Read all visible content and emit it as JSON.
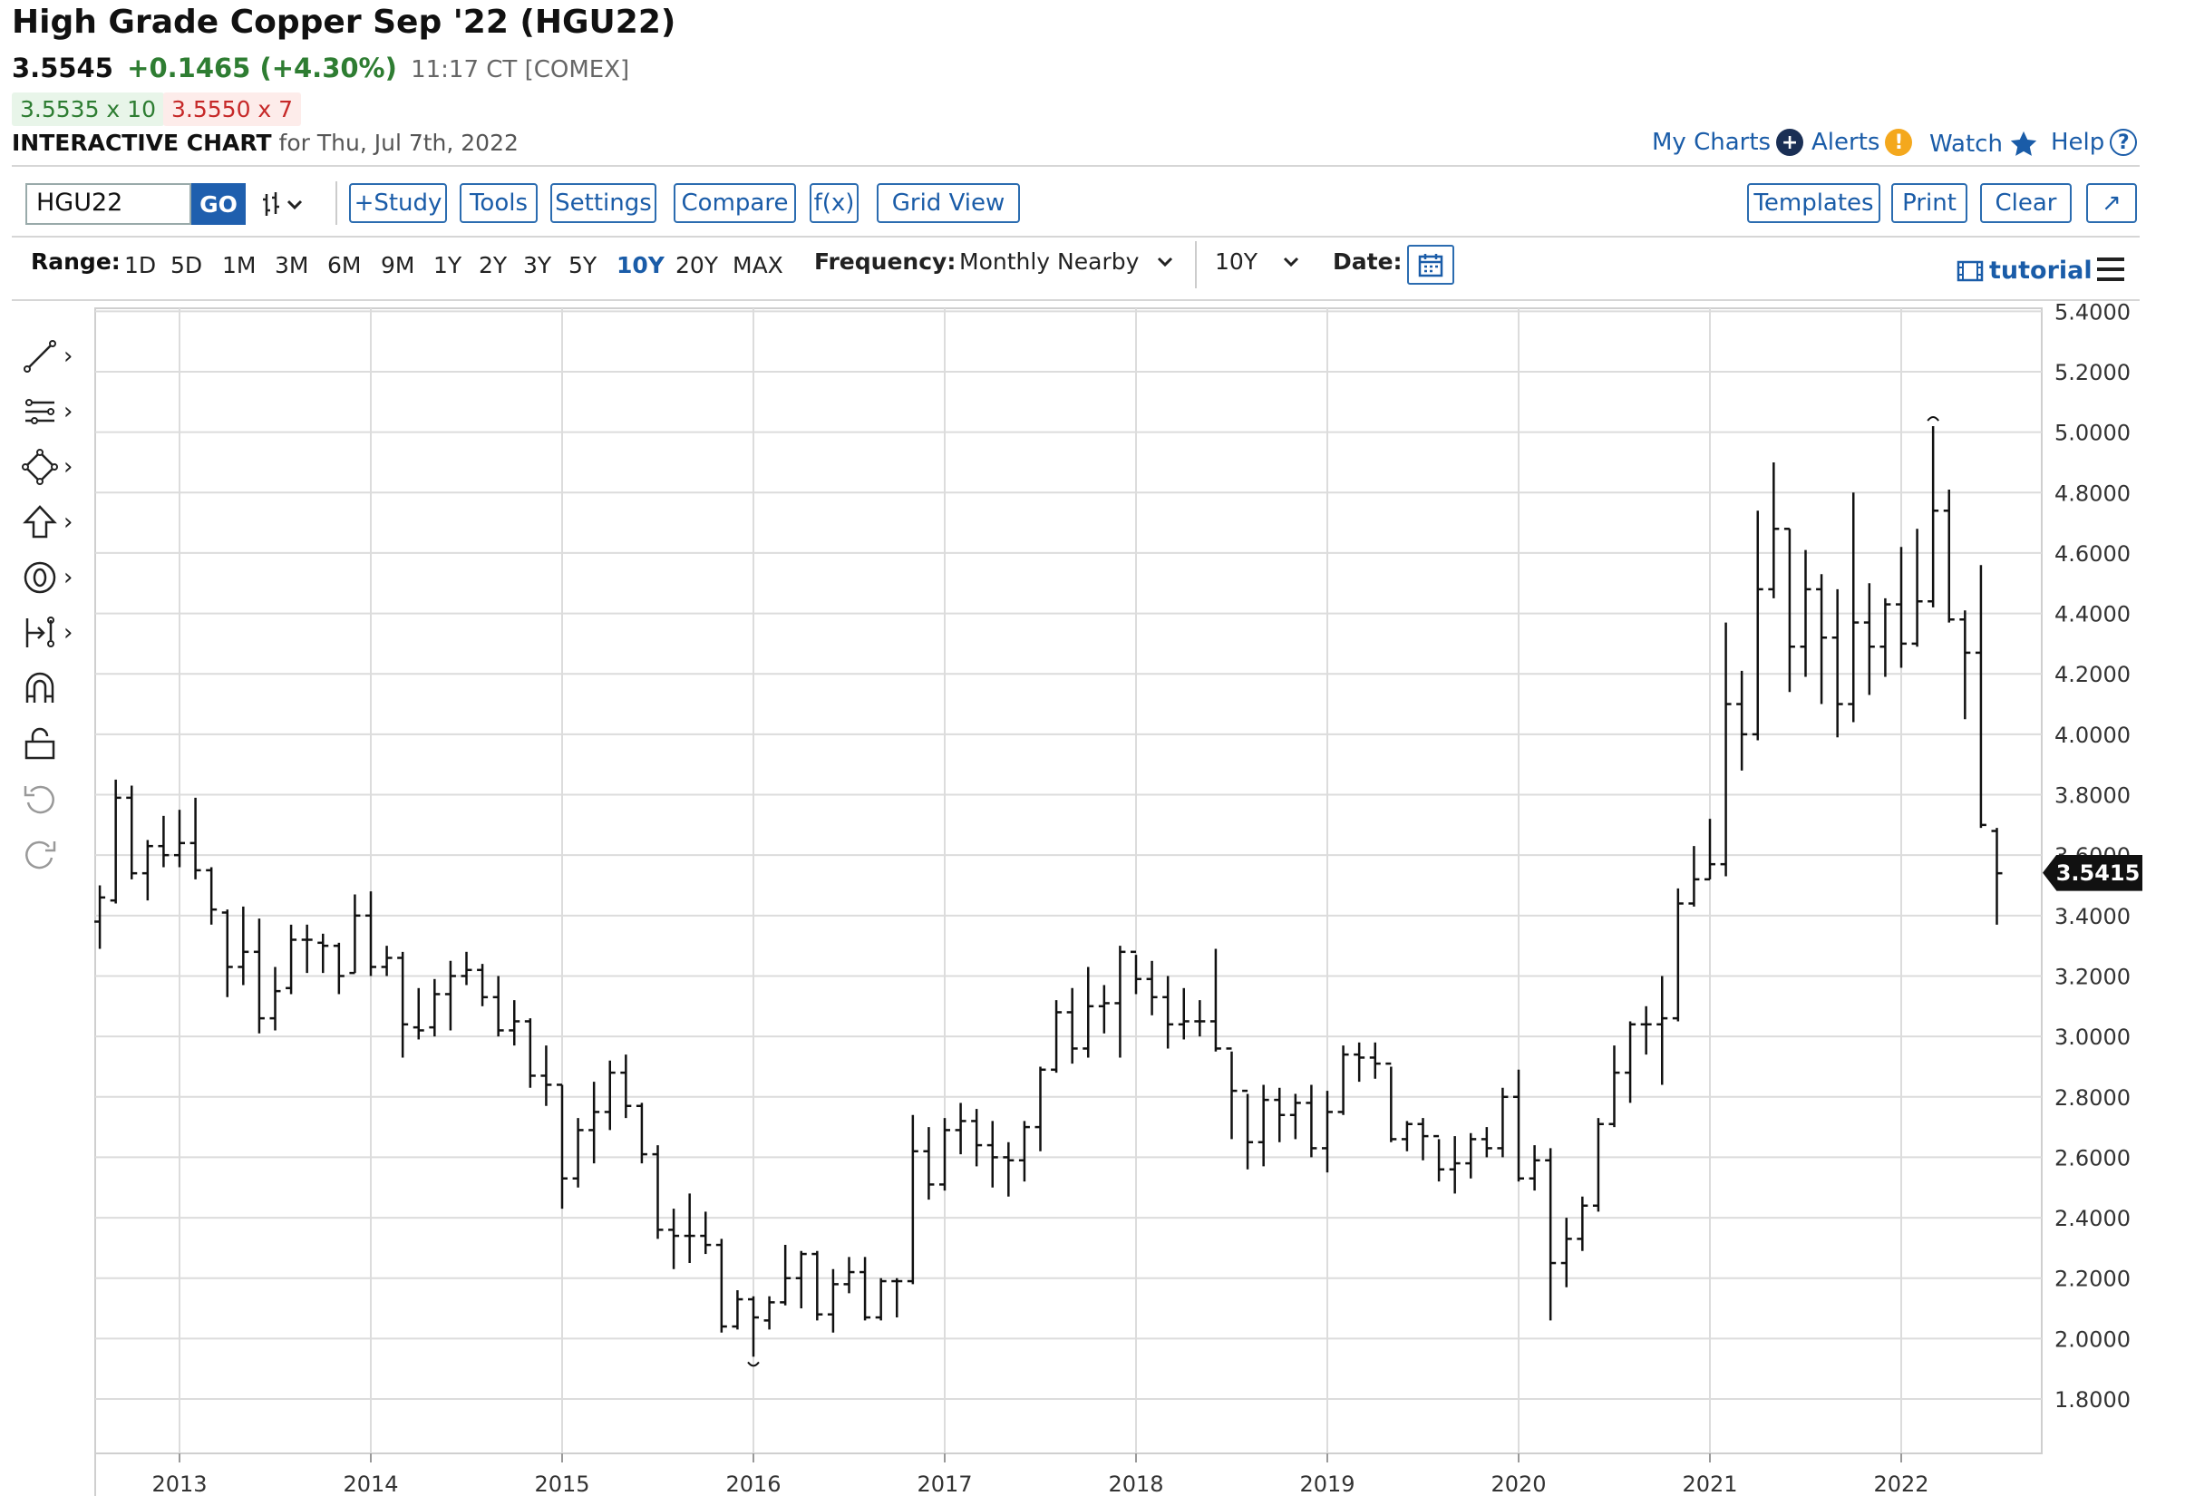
{
  "header": {
    "title": "High Grade Copper Sep '22 (HGU22)",
    "last": "3.5545",
    "change": "+0.1465 (+4.30%)",
    "time_exchange": "11:17 CT [COMEX]",
    "bid": "3.5535 x 10",
    "ask": "3.5550 x 7",
    "chart_label": "INTERACTIVE CHART",
    "chart_date": "for Thu, Jul 7th, 2022"
  },
  "top_links": {
    "my_charts": "My Charts",
    "alerts": "Alerts",
    "watch": "Watch",
    "help": "Help",
    "help_glyph": "?",
    "plus_glyph": "+",
    "alert_glyph": "!"
  },
  "toolbar": {
    "symbol": "HGU22",
    "go": "GO",
    "study": "+Study",
    "tools": "Tools",
    "settings": "Settings",
    "compare": "Compare",
    "fx": "f(x)",
    "grid_view": "Grid View",
    "templates": "Templates",
    "print": "Print",
    "clear": "Clear",
    "expand_glyph": "↗"
  },
  "range_bar": {
    "range_label": "Range:",
    "ranges": [
      "1D",
      "5D",
      "1M",
      "3M",
      "6M",
      "9M",
      "1Y",
      "2Y",
      "3Y",
      "5Y",
      "10Y",
      "20Y",
      "MAX"
    ],
    "selected": "10Y",
    "frequency_label": "Frequency:",
    "frequency_value": "Monthly Nearby",
    "period_value": "10Y",
    "date_label": "Date:",
    "tutorial": "tutorial",
    "chevron": "⌄"
  },
  "sidebar_icons": [
    "line-tool-icon",
    "fib-tool-icon",
    "shape-tool-icon",
    "arrow-up-icon",
    "circle-zero-icon",
    "measure-icon",
    "magnet-icon",
    "lock-icon",
    "undo-icon",
    "redo-icon"
  ],
  "colors": {
    "accent": "#1a5ca8",
    "up": "#2e7d32",
    "down": "#c62828",
    "bars": "#111111"
  },
  "chart_data": {
    "type": "ohlc",
    "frequency": "monthly",
    "x_tick_labels": [
      "2013",
      "2014",
      "2015",
      "2016",
      "2017",
      "2018",
      "2019",
      "2020",
      "2021",
      "2022"
    ],
    "y_tick_labels": [
      "1.8000",
      "2.0000",
      "2.2000",
      "2.4000",
      "2.6000",
      "2.8000",
      "3.0000",
      "3.2000",
      "3.4000",
      "3.6000",
      "3.8000",
      "4.0000",
      "4.2000",
      "4.4000",
      "4.6000",
      "4.8000",
      "5.0000",
      "5.2000",
      "5.4000"
    ],
    "ylim": [
      1.62,
      5.41
    ],
    "grid": true,
    "last_price_label": "3.5415",
    "last_price": 3.5415,
    "high_marker": 5.02,
    "low_marker": 1.94,
    "bars": [
      {
        "d": "2012-08",
        "o": 3.38,
        "h": 3.5,
        "l": 3.29,
        "c": 3.46
      },
      {
        "d": "2012-09",
        "o": 3.45,
        "h": 3.85,
        "l": 3.44,
        "c": 3.79
      },
      {
        "d": "2012-10",
        "o": 3.79,
        "h": 3.83,
        "l": 3.52,
        "c": 3.54
      },
      {
        "d": "2012-11",
        "o": 3.54,
        "h": 3.65,
        "l": 3.45,
        "c": 3.63
      },
      {
        "d": "2012-12",
        "o": 3.63,
        "h": 3.73,
        "l": 3.56,
        "c": 3.6
      },
      {
        "d": "2013-01",
        "o": 3.6,
        "h": 3.75,
        "l": 3.56,
        "c": 3.64
      },
      {
        "d": "2013-02",
        "o": 3.64,
        "h": 3.79,
        "l": 3.52,
        "c": 3.55
      },
      {
        "d": "2013-03",
        "o": 3.55,
        "h": 3.56,
        "l": 3.37,
        "c": 3.42
      },
      {
        "d": "2013-04",
        "o": 3.41,
        "h": 3.42,
        "l": 3.13,
        "c": 3.23
      },
      {
        "d": "2013-05",
        "o": 3.23,
        "h": 3.43,
        "l": 3.17,
        "c": 3.28
      },
      {
        "d": "2013-06",
        "o": 3.28,
        "h": 3.39,
        "l": 3.01,
        "c": 3.06
      },
      {
        "d": "2013-07",
        "o": 3.06,
        "h": 3.23,
        "l": 3.02,
        "c": 3.15
      },
      {
        "d": "2013-08",
        "o": 3.16,
        "h": 3.37,
        "l": 3.14,
        "c": 3.32
      },
      {
        "d": "2013-09",
        "o": 3.32,
        "h": 3.37,
        "l": 3.21,
        "c": 3.32
      },
      {
        "d": "2013-10",
        "o": 3.31,
        "h": 3.34,
        "l": 3.21,
        "c": 3.3
      },
      {
        "d": "2013-11",
        "o": 3.3,
        "h": 3.31,
        "l": 3.14,
        "c": 3.2
      },
      {
        "d": "2013-12",
        "o": 3.21,
        "h": 3.47,
        "l": 3.21,
        "c": 3.4
      },
      {
        "d": "2014-01",
        "o": 3.4,
        "h": 3.48,
        "l": 3.2,
        "c": 3.23
      },
      {
        "d": "2014-02",
        "o": 3.23,
        "h": 3.3,
        "l": 3.2,
        "c": 3.26
      },
      {
        "d": "2014-03",
        "o": 3.26,
        "h": 3.28,
        "l": 2.93,
        "c": 3.04
      },
      {
        "d": "2014-04",
        "o": 3.03,
        "h": 3.16,
        "l": 2.99,
        "c": 3.02
      },
      {
        "d": "2014-05",
        "o": 3.03,
        "h": 3.19,
        "l": 3.0,
        "c": 3.14
      },
      {
        "d": "2014-06",
        "o": 3.14,
        "h": 3.25,
        "l": 3.02,
        "c": 3.2
      },
      {
        "d": "2014-07",
        "o": 3.2,
        "h": 3.28,
        "l": 3.17,
        "c": 3.22
      },
      {
        "d": "2014-08",
        "o": 3.22,
        "h": 3.24,
        "l": 3.1,
        "c": 3.13
      },
      {
        "d": "2014-09",
        "o": 3.13,
        "h": 3.2,
        "l": 3.0,
        "c": 3.02
      },
      {
        "d": "2014-10",
        "o": 3.02,
        "h": 3.12,
        "l": 2.97,
        "c": 3.05
      },
      {
        "d": "2014-11",
        "o": 3.05,
        "h": 3.06,
        "l": 2.83,
        "c": 2.87
      },
      {
        "d": "2014-12",
        "o": 2.87,
        "h": 2.97,
        "l": 2.77,
        "c": 2.84
      },
      {
        "d": "2015-01",
        "o": 2.84,
        "h": 2.84,
        "l": 2.43,
        "c": 2.53
      },
      {
        "d": "2015-02",
        "o": 2.53,
        "h": 2.73,
        "l": 2.5,
        "c": 2.69
      },
      {
        "d": "2015-03",
        "o": 2.69,
        "h": 2.85,
        "l": 2.58,
        "c": 2.75
      },
      {
        "d": "2015-04",
        "o": 2.75,
        "h": 2.92,
        "l": 2.69,
        "c": 2.88
      },
      {
        "d": "2015-05",
        "o": 2.88,
        "h": 2.94,
        "l": 2.73,
        "c": 2.77
      },
      {
        "d": "2015-06",
        "o": 2.77,
        "h": 2.78,
        "l": 2.58,
        "c": 2.61
      },
      {
        "d": "2015-07",
        "o": 2.61,
        "h": 2.64,
        "l": 2.33,
        "c": 2.36
      },
      {
        "d": "2015-08",
        "o": 2.36,
        "h": 2.43,
        "l": 2.23,
        "c": 2.34
      },
      {
        "d": "2015-09",
        "o": 2.34,
        "h": 2.48,
        "l": 2.25,
        "c": 2.34
      },
      {
        "d": "2015-10",
        "o": 2.34,
        "h": 2.42,
        "l": 2.28,
        "c": 2.31
      },
      {
        "d": "2015-11",
        "o": 2.31,
        "h": 2.33,
        "l": 2.02,
        "c": 2.04
      },
      {
        "d": "2015-12",
        "o": 2.04,
        "h": 2.16,
        "l": 2.03,
        "c": 2.13
      },
      {
        "d": "2016-01",
        "o": 2.13,
        "h": 2.14,
        "l": 1.94,
        "c": 2.07
      },
      {
        "d": "2016-02",
        "o": 2.06,
        "h": 2.14,
        "l": 2.03,
        "c": 2.12
      },
      {
        "d": "2016-03",
        "o": 2.12,
        "h": 2.31,
        "l": 2.11,
        "c": 2.2
      },
      {
        "d": "2016-04",
        "o": 2.2,
        "h": 2.29,
        "l": 2.1,
        "c": 2.28
      },
      {
        "d": "2016-05",
        "o": 2.28,
        "h": 2.29,
        "l": 2.06,
        "c": 2.08
      },
      {
        "d": "2016-06",
        "o": 2.08,
        "h": 2.23,
        "l": 2.02,
        "c": 2.18
      },
      {
        "d": "2016-07",
        "o": 2.18,
        "h": 2.27,
        "l": 2.15,
        "c": 2.22
      },
      {
        "d": "2016-08",
        "o": 2.22,
        "h": 2.27,
        "l": 2.06,
        "c": 2.07
      },
      {
        "d": "2016-09",
        "o": 2.07,
        "h": 2.2,
        "l": 2.06,
        "c": 2.19
      },
      {
        "d": "2016-10",
        "o": 2.19,
        "h": 2.2,
        "l": 2.07,
        "c": 2.19
      },
      {
        "d": "2016-11",
        "o": 2.19,
        "h": 2.74,
        "l": 2.18,
        "c": 2.62
      },
      {
        "d": "2016-12",
        "o": 2.62,
        "h": 2.7,
        "l": 2.46,
        "c": 2.51
      },
      {
        "d": "2017-01",
        "o": 2.51,
        "h": 2.73,
        "l": 2.49,
        "c": 2.69
      },
      {
        "d": "2017-02",
        "o": 2.69,
        "h": 2.78,
        "l": 2.61,
        "c": 2.72
      },
      {
        "d": "2017-03",
        "o": 2.72,
        "h": 2.76,
        "l": 2.57,
        "c": 2.64
      },
      {
        "d": "2017-04",
        "o": 2.64,
        "h": 2.72,
        "l": 2.5,
        "c": 2.6
      },
      {
        "d": "2017-05",
        "o": 2.6,
        "h": 2.65,
        "l": 2.47,
        "c": 2.59
      },
      {
        "d": "2017-06",
        "o": 2.59,
        "h": 2.72,
        "l": 2.52,
        "c": 2.7
      },
      {
        "d": "2017-07",
        "o": 2.7,
        "h": 2.9,
        "l": 2.62,
        "c": 2.89
      },
      {
        "d": "2017-08",
        "o": 2.89,
        "h": 3.12,
        "l": 2.88,
        "c": 3.08
      },
      {
        "d": "2017-09",
        "o": 3.08,
        "h": 3.16,
        "l": 2.91,
        "c": 2.96
      },
      {
        "d": "2017-10",
        "o": 2.96,
        "h": 3.23,
        "l": 2.93,
        "c": 3.1
      },
      {
        "d": "2017-11",
        "o": 3.1,
        "h": 3.17,
        "l": 3.01,
        "c": 3.11
      },
      {
        "d": "2017-12",
        "o": 3.11,
        "h": 3.3,
        "l": 2.93,
        "c": 3.28
      },
      {
        "d": "2018-01",
        "o": 3.28,
        "h": 3.27,
        "l": 3.14,
        "c": 3.19
      },
      {
        "d": "2018-02",
        "o": 3.19,
        "h": 3.25,
        "l": 3.07,
        "c": 3.13
      },
      {
        "d": "2018-03",
        "o": 3.13,
        "h": 3.2,
        "l": 2.96,
        "c": 3.04
      },
      {
        "d": "2018-04",
        "o": 3.04,
        "h": 3.16,
        "l": 2.99,
        "c": 3.05
      },
      {
        "d": "2018-05",
        "o": 3.05,
        "h": 3.12,
        "l": 3.0,
        "c": 3.05
      },
      {
        "d": "2018-06",
        "o": 3.05,
        "h": 3.29,
        "l": 2.95,
        "c": 2.96
      },
      {
        "d": "2018-07",
        "o": 2.96,
        "h": 2.95,
        "l": 2.66,
        "c": 2.82
      },
      {
        "d": "2018-08",
        "o": 2.82,
        "h": 2.81,
        "l": 2.56,
        "c": 2.65
      },
      {
        "d": "2018-09",
        "o": 2.65,
        "h": 2.84,
        "l": 2.57,
        "c": 2.79
      },
      {
        "d": "2018-10",
        "o": 2.79,
        "h": 2.83,
        "l": 2.65,
        "c": 2.74
      },
      {
        "d": "2018-11",
        "o": 2.74,
        "h": 2.81,
        "l": 2.66,
        "c": 2.78
      },
      {
        "d": "2018-12",
        "o": 2.78,
        "h": 2.84,
        "l": 2.6,
        "c": 2.63
      },
      {
        "d": "2019-01",
        "o": 2.63,
        "h": 2.82,
        "l": 2.55,
        "c": 2.75
      },
      {
        "d": "2019-02",
        "o": 2.75,
        "h": 2.97,
        "l": 2.74,
        "c": 2.94
      },
      {
        "d": "2019-03",
        "o": 2.94,
        "h": 2.98,
        "l": 2.85,
        "c": 2.93
      },
      {
        "d": "2019-04",
        "o": 2.93,
        "h": 2.98,
        "l": 2.86,
        "c": 2.91
      },
      {
        "d": "2019-05",
        "o": 2.91,
        "h": 2.9,
        "l": 2.65,
        "c": 2.66
      },
      {
        "d": "2019-06",
        "o": 2.66,
        "h": 2.72,
        "l": 2.62,
        "c": 2.71
      },
      {
        "d": "2019-07",
        "o": 2.71,
        "h": 2.73,
        "l": 2.59,
        "c": 2.67
      },
      {
        "d": "2019-08",
        "o": 2.67,
        "h": 2.66,
        "l": 2.52,
        "c": 2.56
      },
      {
        "d": "2019-09",
        "o": 2.56,
        "h": 2.67,
        "l": 2.48,
        "c": 2.58
      },
      {
        "d": "2019-10",
        "o": 2.58,
        "h": 2.68,
        "l": 2.53,
        "c": 2.66
      },
      {
        "d": "2019-11",
        "o": 2.66,
        "h": 2.7,
        "l": 2.6,
        "c": 2.63
      },
      {
        "d": "2019-12",
        "o": 2.63,
        "h": 2.83,
        "l": 2.6,
        "c": 2.8
      },
      {
        "d": "2020-01",
        "o": 2.8,
        "h": 2.89,
        "l": 2.52,
        "c": 2.53
      },
      {
        "d": "2020-02",
        "o": 2.53,
        "h": 2.64,
        "l": 2.49,
        "c": 2.59
      },
      {
        "d": "2020-03",
        "o": 2.59,
        "h": 2.63,
        "l": 2.06,
        "c": 2.25
      },
      {
        "d": "2020-04",
        "o": 2.25,
        "h": 2.4,
        "l": 2.17,
        "c": 2.33
      },
      {
        "d": "2020-05",
        "o": 2.33,
        "h": 2.47,
        "l": 2.29,
        "c": 2.44
      },
      {
        "d": "2020-06",
        "o": 2.44,
        "h": 2.73,
        "l": 2.42,
        "c": 2.71
      },
      {
        "d": "2020-07",
        "o": 2.71,
        "h": 2.97,
        "l": 2.7,
        "c": 2.88
      },
      {
        "d": "2020-08",
        "o": 2.88,
        "h": 3.05,
        "l": 2.78,
        "c": 3.04
      },
      {
        "d": "2020-09",
        "o": 3.04,
        "h": 3.1,
        "l": 2.94,
        "c": 3.04
      },
      {
        "d": "2020-10",
        "o": 3.04,
        "h": 3.2,
        "l": 2.84,
        "c": 3.06
      },
      {
        "d": "2020-11",
        "o": 3.06,
        "h": 3.49,
        "l": 3.05,
        "c": 3.44
      },
      {
        "d": "2020-12",
        "o": 3.44,
        "h": 3.63,
        "l": 3.43,
        "c": 3.52
      },
      {
        "d": "2021-01",
        "o": 3.52,
        "h": 3.72,
        "l": 3.52,
        "c": 3.57
      },
      {
        "d": "2021-02",
        "o": 3.57,
        "h": 4.37,
        "l": 3.53,
        "c": 4.1
      },
      {
        "d": "2021-03",
        "o": 4.1,
        "h": 4.21,
        "l": 3.88,
        "c": 4.0
      },
      {
        "d": "2021-04",
        "o": 4.0,
        "h": 4.74,
        "l": 3.98,
        "c": 4.48
      },
      {
        "d": "2021-05",
        "o": 4.48,
        "h": 4.9,
        "l": 4.45,
        "c": 4.68
      },
      {
        "d": "2021-06",
        "o": 4.68,
        "h": 4.68,
        "l": 4.14,
        "c": 4.29
      },
      {
        "d": "2021-07",
        "o": 4.29,
        "h": 4.61,
        "l": 4.19,
        "c": 4.48
      },
      {
        "d": "2021-08",
        "o": 4.48,
        "h": 4.53,
        "l": 4.1,
        "c": 4.32
      },
      {
        "d": "2021-09",
        "o": 4.32,
        "h": 4.48,
        "l": 3.99,
        "c": 4.1
      },
      {
        "d": "2021-10",
        "o": 4.1,
        "h": 4.8,
        "l": 4.04,
        "c": 4.37
      },
      {
        "d": "2021-11",
        "o": 4.37,
        "h": 4.5,
        "l": 4.13,
        "c": 4.29
      },
      {
        "d": "2021-12",
        "o": 4.29,
        "h": 4.45,
        "l": 4.19,
        "c": 4.43
      },
      {
        "d": "2022-01",
        "o": 4.43,
        "h": 4.62,
        "l": 4.22,
        "c": 4.3
      },
      {
        "d": "2022-02",
        "o": 4.3,
        "h": 4.68,
        "l": 4.29,
        "c": 4.44
      },
      {
        "d": "2022-03",
        "o": 4.44,
        "h": 5.02,
        "l": 4.42,
        "c": 4.74
      },
      {
        "d": "2022-04",
        "o": 4.74,
        "h": 4.81,
        "l": 4.37,
        "c": 4.38
      },
      {
        "d": "2022-05",
        "o": 4.38,
        "h": 4.41,
        "l": 4.05,
        "c": 4.27
      },
      {
        "d": "2022-06",
        "o": 4.27,
        "h": 4.56,
        "l": 3.69,
        "c": 3.7
      },
      {
        "d": "2022-07",
        "o": 3.68,
        "h": 3.69,
        "l": 3.37,
        "c": 3.54
      }
    ]
  }
}
